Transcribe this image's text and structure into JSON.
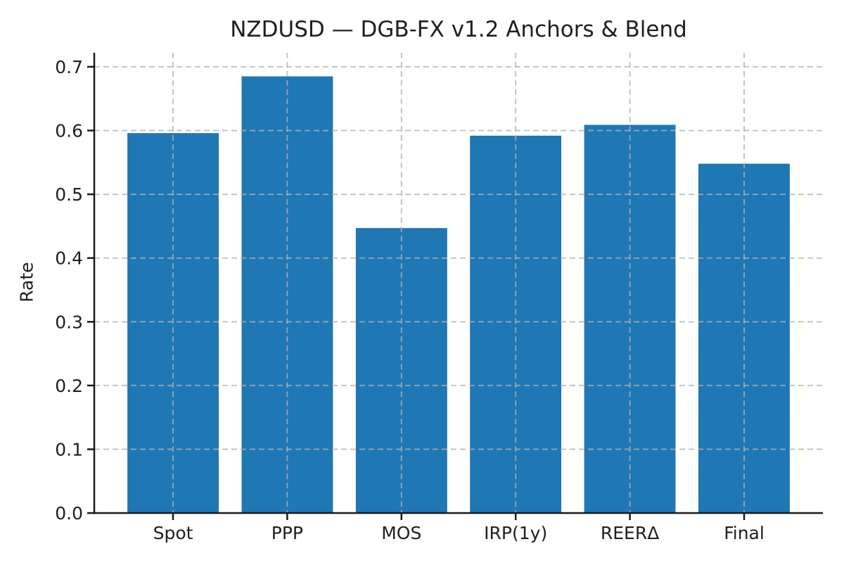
{
  "chart_data": {
    "type": "bar",
    "title": "NZDUSD — DGB-FX v1.2 Anchors & Blend",
    "xlabel": "",
    "ylabel": "Rate",
    "categories": [
      "Spot",
      "PPP",
      "MOS",
      "IRP(1y)",
      "REERΔ",
      "Final"
    ],
    "values": [
      0.596,
      0.685,
      0.447,
      0.592,
      0.609,
      0.548
    ],
    "ylim": [
      0,
      0.722
    ],
    "yticks": [
      0.0,
      0.1,
      0.2,
      0.3,
      0.4,
      0.5,
      0.6,
      0.7
    ],
    "ytick_labels": [
      "0.0",
      "0.1",
      "0.2",
      "0.3",
      "0.4",
      "0.5",
      "0.6",
      "0.7"
    ],
    "grid": true,
    "grid_style": "dashed",
    "grid_on_top_of_bars": true,
    "legend": "none",
    "bar_color": "#1f77b4",
    "grid_color": "#b2b2b2",
    "text_color": "#1f1f1f",
    "spine_color": "#1a1a1a",
    "background": "#ffffff"
  }
}
